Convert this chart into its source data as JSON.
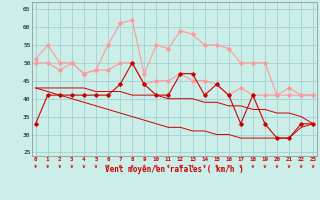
{
  "x": [
    0,
    1,
    2,
    3,
    4,
    5,
    6,
    7,
    8,
    9,
    10,
    11,
    12,
    13,
    14,
    15,
    16,
    17,
    18,
    19,
    20,
    21,
    22,
    23
  ],
  "line_dr1": [
    33,
    41,
    41,
    41,
    41,
    41,
    41,
    44,
    50,
    44,
    41,
    41,
    47,
    47,
    41,
    44,
    41,
    33,
    41,
    33,
    29,
    29,
    33,
    33
  ],
  "line_dr2": [
    43,
    42,
    41,
    40,
    39,
    38,
    37,
    36,
    35,
    34,
    33,
    32,
    32,
    31,
    31,
    30,
    30,
    29,
    29,
    29,
    29,
    29,
    32,
    33
  ],
  "line_dr3": [
    43,
    43,
    43,
    43,
    43,
    42,
    42,
    42,
    41,
    41,
    41,
    40,
    40,
    40,
    39,
    39,
    38,
    38,
    37,
    37,
    36,
    36,
    35,
    33
  ],
  "line_pink1": [
    50,
    50,
    48,
    50,
    47,
    48,
    48,
    50,
    50,
    44,
    45,
    45,
    47,
    45,
    45,
    44,
    41,
    43,
    41,
    41,
    41,
    41,
    41,
    41
  ],
  "line_pink2": [
    51,
    55,
    50,
    50,
    47,
    48,
    55,
    61,
    62,
    47,
    55,
    54,
    59,
    58,
    55,
    55,
    54,
    50,
    50,
    50,
    41,
    43,
    41,
    41
  ],
  "xlabel": "Vent moyen/en rafales ( km/h )",
  "ylabel_ticks": [
    25,
    30,
    35,
    40,
    45,
    50,
    55,
    60,
    65
  ],
  "xlim": [
    -0.3,
    23.3
  ],
  "ylim": [
    24,
    67
  ],
  "bg_color": "#cceee8",
  "grid_color": "#99cccc",
  "line_dark_red": "#cc0000",
  "line_pink": "#ff9999",
  "arrow_color": "#dd2222"
}
